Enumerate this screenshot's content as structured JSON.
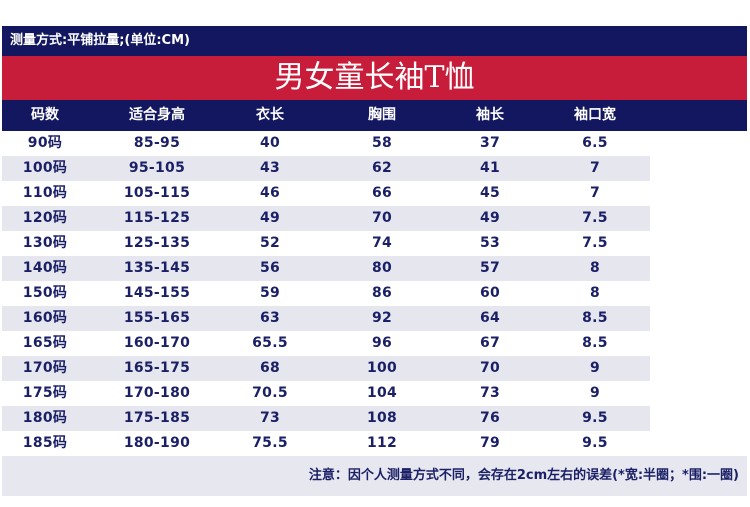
{
  "header": {
    "measure_note": "测量方式:平铺拉量;(单位:CM)",
    "title": "男女童长袖T恤"
  },
  "columns": [
    "码数",
    "适合身高",
    "衣长",
    "胸围",
    "袖长",
    "袖口宽"
  ],
  "rows": [
    [
      "90码",
      "85-95",
      "40",
      "58",
      "37",
      "6.5"
    ],
    [
      "100码",
      "95-105",
      "43",
      "62",
      "41",
      "7"
    ],
    [
      "110码",
      "105-115",
      "46",
      "66",
      "45",
      "7"
    ],
    [
      "120码",
      "115-125",
      "49",
      "70",
      "49",
      "7.5"
    ],
    [
      "130码",
      "125-135",
      "52",
      "74",
      "53",
      "7.5"
    ],
    [
      "140码",
      "135-145",
      "56",
      "80",
      "57",
      "8"
    ],
    [
      "150码",
      "145-155",
      "59",
      "86",
      "60",
      "8"
    ],
    [
      "160码",
      "155-165",
      "63",
      "92",
      "64",
      "8.5"
    ],
    [
      "165码",
      "160-170",
      "65.5",
      "96",
      "67",
      "8.5"
    ],
    [
      "170码",
      "165-175",
      "68",
      "100",
      "70",
      "9"
    ],
    [
      "175码",
      "170-180",
      "70.5",
      "104",
      "73",
      "9"
    ],
    [
      "180码",
      "175-185",
      "73",
      "108",
      "76",
      "9.5"
    ],
    [
      "185码",
      "180-190",
      "75.5",
      "112",
      "79",
      "9.5"
    ]
  ],
  "footer": {
    "note": "注意：因个人测量方式不同，会存在2cm左右的误差(*宽:半圈；*围:一圈)"
  },
  "colors": {
    "navy": "#13175f",
    "red": "#c81d3a",
    "text": "#1a1f66",
    "stripe": "#e6e7ee"
  }
}
